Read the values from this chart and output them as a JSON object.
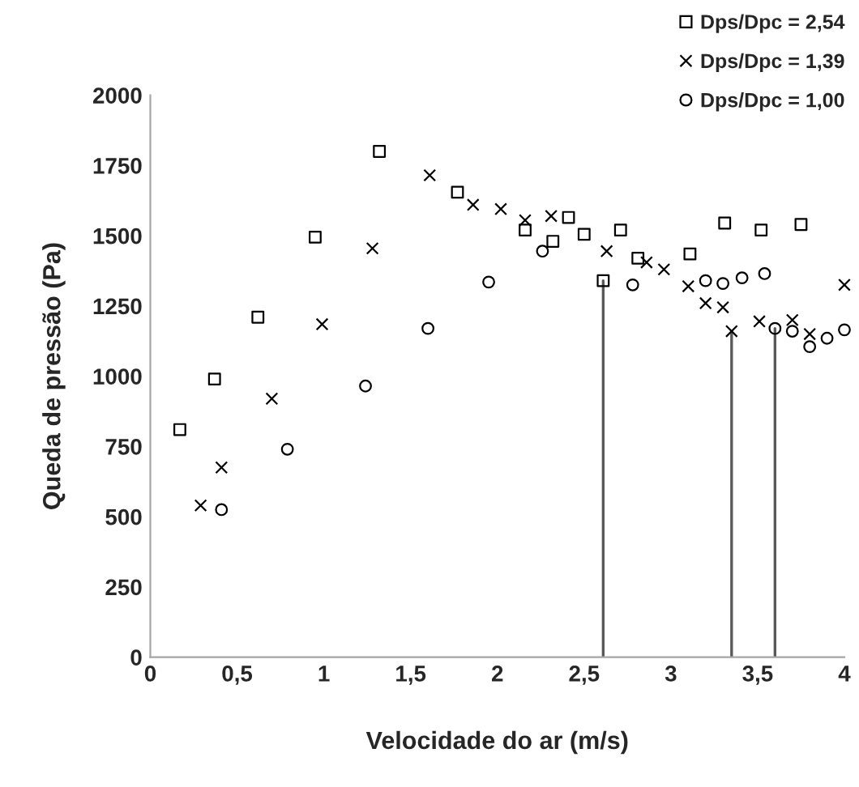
{
  "chart_data": {
    "type": "scatter",
    "xlabel": "Velocidade do ar (m/s)",
    "ylabel": "Queda de pressão (Pa)",
    "xlim": [
      0,
      4
    ],
    "ylim": [
      0,
      2000
    ],
    "xticks": [
      0,
      {
        "value": 0.5,
        "label": "0,5"
      },
      1,
      {
        "value": 1.5,
        "label": "1,5"
      },
      2,
      {
        "value": 2.5,
        "label": "2,5"
      },
      3,
      {
        "value": 3.5,
        "label": "3,5"
      },
      4
    ],
    "yticks": [
      0,
      250,
      500,
      750,
      1000,
      1250,
      1500,
      1750,
      2000
    ],
    "grid": false,
    "legend": "top right",
    "series": [
      {
        "name": "Dps/Dpc = 2,54",
        "color": "#000000",
        "marker": "square",
        "x": [
          0.17,
          0.37,
          0.62,
          0.95,
          1.32,
          1.77,
          2.16,
          2.32,
          2.41,
          2.5,
          2.61,
          2.71,
          2.81,
          3.11,
          3.31,
          3.52,
          3.75
        ],
        "values": [
          810,
          990,
          1210,
          1495,
          1800,
          1655,
          1520,
          1480,
          1565,
          1505,
          1340,
          1520,
          1420,
          1435,
          1545,
          1520,
          1540
        ],
        "errors": [
          null,
          null,
          null,
          null,
          null,
          null,
          null,
          null,
          null,
          null,
          [
            0,
            1340
          ],
          null,
          null,
          null,
          null,
          null,
          null
        ]
      },
      {
        "name": "Dps/Dpc = 1,39",
        "color": "#000000",
        "marker": "cross",
        "x": [
          0.29,
          0.41,
          0.7,
          0.99,
          1.28,
          1.61,
          1.86,
          2.02,
          2.16,
          2.31,
          2.63,
          2.86,
          2.96,
          3.1,
          3.2,
          3.3,
          3.35,
          3.51,
          3.7,
          3.8,
          4.0
        ],
        "values": [
          540,
          675,
          920,
          1185,
          1455,
          1715,
          1610,
          1595,
          1555,
          1570,
          1445,
          1405,
          1380,
          1320,
          1260,
          1245,
          1160,
          1195,
          1200,
          1150,
          1325
        ],
        "errors": [
          null,
          null,
          null,
          null,
          null,
          null,
          null,
          null,
          null,
          null,
          null,
          null,
          null,
          null,
          null,
          null,
          [
            0,
            1160
          ],
          null,
          null,
          null,
          null
        ]
      },
      {
        "name": "Dps/Dpc = 1,00",
        "color": "#000000",
        "marker": "circle",
        "x": [
          0.41,
          0.79,
          1.24,
          1.6,
          1.95,
          2.26,
          2.78,
          3.2,
          3.3,
          3.41,
          3.54,
          3.6,
          3.7,
          3.8,
          3.9,
          4.0
        ],
        "values": [
          525,
          740,
          965,
          1170,
          1335,
          1445,
          1325,
          1340,
          1330,
          1350,
          1365,
          1170,
          1160,
          1105,
          1135,
          1165
        ],
        "errors": [
          null,
          null,
          null,
          null,
          null,
          null,
          null,
          null,
          null,
          null,
          null,
          [
            0,
            1170
          ],
          null,
          null,
          null,
          null
        ]
      }
    ]
  }
}
